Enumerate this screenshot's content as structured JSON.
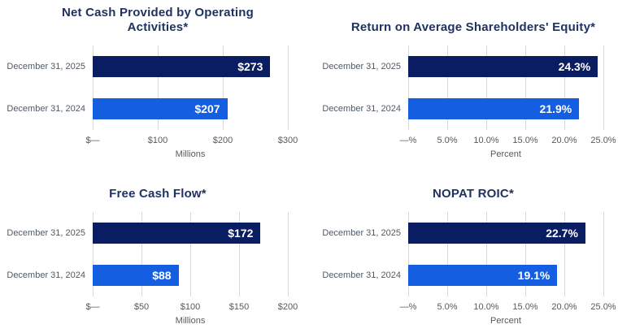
{
  "page": {
    "background": "#ffffff"
  },
  "colors": {
    "bar_2025": "#0b1d62",
    "bar_2024": "#145ee1",
    "title_text": "#1f3262",
    "category_label": "#4f5a68",
    "tick_label": "#595959",
    "gridline": "#d9d9d9",
    "value_label": "#ffffff",
    "background": "#ffffff"
  },
  "chart_data": [
    {
      "type": "bar",
      "orientation": "horizontal",
      "title": "Net Cash Provided by Operating Activities*",
      "categories": [
        "December 31, 2025",
        "December 31, 2024"
      ],
      "values": [
        273,
        207
      ],
      "value_labels": [
        "$273",
        "$207"
      ],
      "xlabel": "Millions",
      "xlim": [
        0,
        300
      ],
      "tick_values": [
        0,
        100,
        200,
        300
      ],
      "tick_labels": [
        "$—",
        "$100",
        "$200",
        "$300"
      ],
      "grid": true,
      "legend": false
    },
    {
      "type": "bar",
      "orientation": "horizontal",
      "title": "Return on Average Shareholders' Equity*",
      "categories": [
        "December 31, 2025",
        "December 31, 2024"
      ],
      "values": [
        24.3,
        21.9
      ],
      "value_labels": [
        "24.3%",
        "21.9%"
      ],
      "xlabel": "Percent",
      "xlim": [
        0,
        25
      ],
      "tick_values": [
        0,
        5,
        10,
        15,
        20,
        25
      ],
      "tick_labels": [
        "—%",
        "5.0%",
        "10.0%",
        "15.0%",
        "20.0%",
        "25.0%"
      ],
      "grid": true,
      "legend": false
    },
    {
      "type": "bar",
      "orientation": "horizontal",
      "title": "Free Cash Flow*",
      "categories": [
        "December 31, 2025",
        "December 31, 2024"
      ],
      "values": [
        172,
        88
      ],
      "value_labels": [
        "$172",
        "$88"
      ],
      "xlabel": "Millions",
      "xlim": [
        0,
        200
      ],
      "tick_values": [
        0,
        50,
        100,
        150,
        200
      ],
      "tick_labels": [
        "$—",
        "$50",
        "$100",
        "$150",
        "$200"
      ],
      "grid": true,
      "legend": false
    },
    {
      "type": "bar",
      "orientation": "horizontal",
      "title": "NOPAT ROIC*",
      "categories": [
        "December 31, 2025",
        "December 31, 2024"
      ],
      "values": [
        22.7,
        19.1
      ],
      "value_labels": [
        "22.7%",
        "19.1%"
      ],
      "xlabel": "Percent",
      "xlim": [
        0,
        25
      ],
      "tick_values": [
        0,
        5,
        10,
        15,
        20,
        25
      ],
      "tick_labels": [
        "—%",
        "5.0%",
        "10.0%",
        "15.0%",
        "20.0%",
        "25.0%"
      ],
      "grid": true,
      "legend": false
    }
  ]
}
